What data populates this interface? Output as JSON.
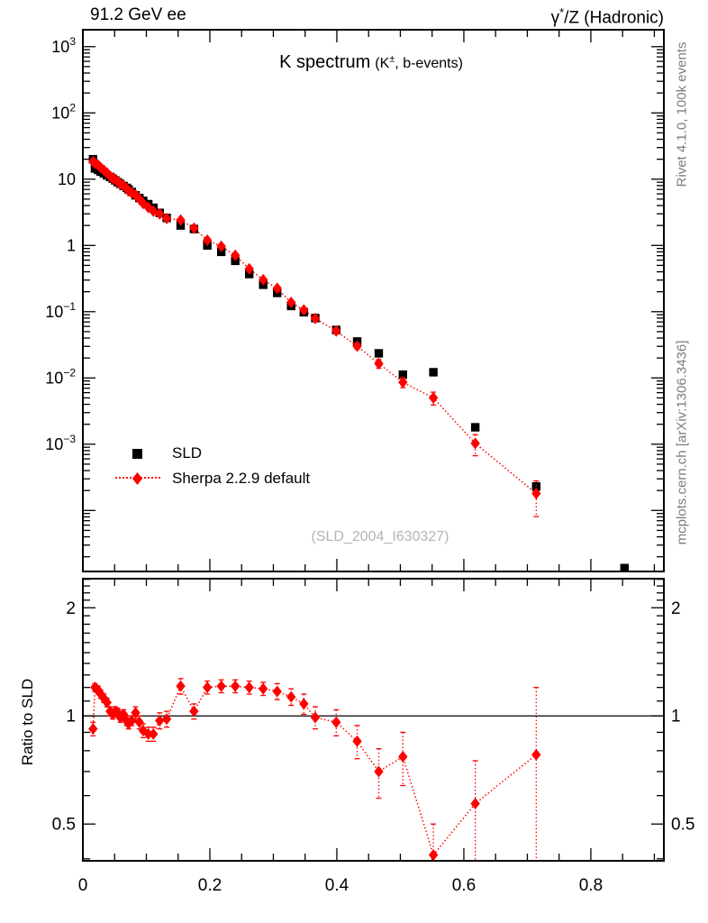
{
  "header": {
    "left": "91.2 GeV ee",
    "right_pre": "γ",
    "right_sup": "*",
    "right_post": "/Z (Hadronic)"
  },
  "title": {
    "main": "K spectrum",
    "paren_pre": "(K",
    "sup": "±",
    "paren_post": ", b-events)"
  },
  "legend": [
    {
      "label": "SLD",
      "marker": "square",
      "color": "#000000"
    },
    {
      "label": "Sherpa 2.2.9 default",
      "marker": "diamond",
      "color": "#ff0000",
      "line": "dotted"
    }
  ],
  "side_notes": {
    "top": "Rivet 4.1.0,  100k events",
    "bottom": "mcplots.cern.ch [arXiv:1306.3436]"
  },
  "watermark": "(SLD_2004_I630327)",
  "ratio_axis_label": "Ratio to SLD",
  "colors": {
    "data": "#000000",
    "mc": "#ff0000",
    "gray_note": "#7d7d7d",
    "watermark": "#b4b4b4"
  },
  "chart_data": {
    "type": "scatter",
    "title": "K spectrum (K±, b-events)",
    "xlabel": "",
    "xlim": [
      0,
      0.915
    ],
    "x_minor_step": 0.05,
    "xticks": [
      {
        "v": 0,
        "label": "0"
      },
      {
        "v": 0.2,
        "label": "0.2"
      },
      {
        "v": 0.4,
        "label": "0.4"
      },
      {
        "v": 0.6,
        "label": "0.6"
      },
      {
        "v": 0.8,
        "label": "0.8"
      }
    ],
    "main_panel": {
      "yscale": "log",
      "ylim": [
        1.2e-05,
        1800
      ],
      "yticks": [
        {
          "v": 1000,
          "base": "10",
          "exp": "3"
        },
        {
          "v": 100,
          "base": "10",
          "exp": "2"
        },
        {
          "v": 10,
          "base": "10",
          "exp": ""
        },
        {
          "v": 1,
          "base": "1",
          "exp": ""
        },
        {
          "v": 0.1,
          "base": "10",
          "exp": "−1"
        },
        {
          "v": 0.01,
          "base": "10",
          "exp": "−2"
        },
        {
          "v": 0.001,
          "base": "10",
          "exp": "−3"
        }
      ]
    },
    "ratio_panel": {
      "yscale": "log",
      "ylim": [
        0.395,
        2.41
      ],
      "unity": 1,
      "yticks": [
        {
          "v": 2,
          "label": "2"
        },
        {
          "v": 1,
          "label": "1"
        },
        {
          "v": 0.5,
          "label": "0.5"
        }
      ],
      "yminor": [
        0.4,
        0.6,
        0.7,
        0.8,
        0.9,
        1.1,
        1.2,
        1.3,
        1.4,
        1.5,
        1.6,
        1.7,
        1.8,
        1.9,
        2.1,
        2.2,
        2.3,
        2.4
      ]
    },
    "series": [
      {
        "name": "SLD",
        "marker": "square",
        "color": "#000000",
        "points": [
          [
            0.016,
            20
          ],
          [
            0.019,
            14.5
          ],
          [
            0.024,
            13.8
          ],
          [
            0.028,
            13.0
          ],
          [
            0.033,
            12.2
          ],
          [
            0.038,
            11.4
          ],
          [
            0.043,
            10.8
          ],
          [
            0.047,
            10.2
          ],
          [
            0.051,
            9.6
          ],
          [
            0.055,
            9.0
          ],
          [
            0.059,
            8.5
          ],
          [
            0.064,
            7.9
          ],
          [
            0.069,
            7.4
          ],
          [
            0.072,
            7.0
          ],
          [
            0.077,
            6.4
          ],
          [
            0.083,
            5.7
          ],
          [
            0.089,
            5.2
          ],
          [
            0.095,
            4.7
          ],
          [
            0.103,
            4.2
          ],
          [
            0.111,
            3.7
          ],
          [
            0.121,
            3.1
          ],
          [
            0.132,
            2.6
          ],
          [
            0.154,
            2.0
          ],
          [
            0.175,
            1.77
          ],
          [
            0.196,
            1.0
          ],
          [
            0.218,
            0.8
          ],
          [
            0.24,
            0.585
          ],
          [
            0.262,
            0.37
          ],
          [
            0.284,
            0.255
          ],
          [
            0.306,
            0.192
          ],
          [
            0.328,
            0.122
          ],
          [
            0.348,
            0.098
          ],
          [
            0.366,
            0.08
          ],
          [
            0.399,
            0.053
          ],
          [
            0.432,
            0.0355
          ],
          [
            0.466,
            0.0235
          ],
          [
            0.504,
            0.0112
          ],
          [
            0.552,
            0.0122
          ],
          [
            0.618,
            0.0018
          ],
          [
            0.714,
            0.00023
          ],
          [
            0.853,
            1.35e-05
          ]
        ]
      },
      {
        "name": "Sherpa 2.2.9 default",
        "marker": "diamond",
        "color": "#ff0000",
        "line": "dotted",
        "points": [
          [
            0.016,
            18.4,
            0.03
          ],
          [
            0.019,
            17.4,
            0.03
          ],
          [
            0.024,
            16.3,
            0.03
          ],
          [
            0.028,
            15.0,
            0.03
          ],
          [
            0.033,
            13.7,
            0.03
          ],
          [
            0.038,
            12.4,
            0.03
          ],
          [
            0.043,
            11.1,
            0.03
          ],
          [
            0.047,
            10.3,
            0.03
          ],
          [
            0.051,
            9.9,
            0.03
          ],
          [
            0.055,
            9.2,
            0.03
          ],
          [
            0.059,
            8.4,
            0.03
          ],
          [
            0.064,
            8.0,
            0.03
          ],
          [
            0.069,
            7.2,
            0.03
          ],
          [
            0.072,
            6.65,
            0.03
          ],
          [
            0.077,
            6.2,
            0.03
          ],
          [
            0.083,
            5.8,
            0.03
          ],
          [
            0.089,
            5.0,
            0.03
          ],
          [
            0.095,
            4.3,
            0.03
          ],
          [
            0.103,
            3.74,
            0.03
          ],
          [
            0.111,
            3.29,
            0.03
          ],
          [
            0.121,
            3.0,
            0.03
          ],
          [
            0.132,
            2.55,
            0.03
          ],
          [
            0.154,
            2.42,
            0.05
          ],
          [
            0.175,
            1.82,
            0.05
          ],
          [
            0.196,
            1.2,
            0.05
          ],
          [
            0.218,
            0.97,
            0.05
          ],
          [
            0.24,
            0.71,
            0.05
          ],
          [
            0.262,
            0.444,
            0.05
          ],
          [
            0.284,
            0.303,
            0.05
          ],
          [
            0.306,
            0.225,
            0.06
          ],
          [
            0.328,
            0.138,
            0.07
          ],
          [
            0.348,
            0.106,
            0.08
          ],
          [
            0.366,
            0.079,
            0.08
          ],
          [
            0.399,
            0.051,
            0.09
          ],
          [
            0.432,
            0.0302,
            0.1
          ],
          [
            0.466,
            0.0165,
            0.15
          ],
          [
            0.504,
            0.0086,
            0.17
          ],
          [
            0.552,
            0.005,
            0.22
          ],
          [
            0.618,
            0.00103,
            0.35
          ],
          [
            0.714,
            0.00018,
            0.55
          ]
        ]
      }
    ],
    "ratio_series": {
      "name": "Sherpa 2.2.9 default / SLD",
      "color": "#ff0000",
      "line": "dotted",
      "marker": "diamond",
      "points": [
        [
          0.016,
          0.92,
          0.04
        ],
        [
          0.019,
          1.2,
          0.03
        ],
        [
          0.024,
          1.18,
          0.03
        ],
        [
          0.028,
          1.15,
          0.03
        ],
        [
          0.033,
          1.12,
          0.03
        ],
        [
          0.038,
          1.09,
          0.03
        ],
        [
          0.043,
          1.03,
          0.03
        ],
        [
          0.047,
          1.01,
          0.03
        ],
        [
          0.051,
          1.03,
          0.03
        ],
        [
          0.055,
          1.02,
          0.03
        ],
        [
          0.059,
          0.99,
          0.03
        ],
        [
          0.064,
          1.01,
          0.03
        ],
        [
          0.069,
          0.97,
          0.03
        ],
        [
          0.072,
          0.95,
          0.03
        ],
        [
          0.077,
          0.97,
          0.03
        ],
        [
          0.083,
          1.02,
          0.04
        ],
        [
          0.089,
          0.96,
          0.04
        ],
        [
          0.095,
          0.91,
          0.04
        ],
        [
          0.103,
          0.89,
          0.04
        ],
        [
          0.111,
          0.89,
          0.04
        ],
        [
          0.121,
          0.97,
          0.05
        ],
        [
          0.132,
          0.98,
          0.05
        ],
        [
          0.154,
          1.21,
          0.06
        ],
        [
          0.175,
          1.03,
          0.05
        ],
        [
          0.196,
          1.2,
          0.05
        ],
        [
          0.218,
          1.21,
          0.05
        ],
        [
          0.24,
          1.21,
          0.05
        ],
        [
          0.262,
          1.2,
          0.05
        ],
        [
          0.284,
          1.19,
          0.05
        ],
        [
          0.306,
          1.17,
          0.06
        ],
        [
          0.328,
          1.13,
          0.06
        ],
        [
          0.348,
          1.08,
          0.07
        ],
        [
          0.366,
          0.99,
          0.07
        ],
        [
          0.399,
          0.96,
          0.08
        ],
        [
          0.432,
          0.85,
          0.09
        ],
        [
          0.466,
          0.7,
          0.11
        ],
        [
          0.504,
          0.77,
          0.13
        ],
        [
          0.552,
          0.41,
          0.09
        ],
        [
          0.618,
          0.57,
          0.18
        ],
        [
          0.714,
          0.78,
          0.42
        ]
      ]
    }
  }
}
